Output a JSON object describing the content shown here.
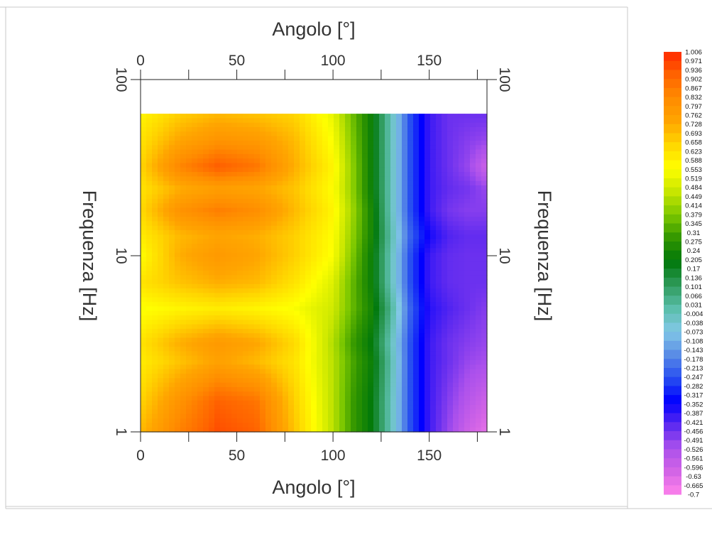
{
  "chart_data": {
    "type": "heatmap",
    "title": "",
    "xlabel": "Angolo [°]",
    "ylabel": "Frequenza [Hz]",
    "x_axis": {
      "lim": [
        0,
        180
      ],
      "ticks": [
        0,
        50,
        100,
        150
      ],
      "tick_labels": [
        "0",
        "50",
        "100",
        "150"
      ],
      "scale": "linear"
    },
    "y_axis": {
      "lim": [
        1,
        100
      ],
      "ticks": [
        1,
        10,
        100
      ],
      "tick_labels": [
        "1",
        "10",
        "100"
      ],
      "scale": "log"
    },
    "data_extent": {
      "x": [
        0,
        180
      ],
      "y": [
        1,
        64
      ]
    },
    "grid": false,
    "colorbar": {
      "labels": [
        "1.006",
        "0.971",
        "0.936",
        "0.902",
        "0.867",
        "0.832",
        "0.797",
        "0.762",
        "0.728",
        "0.693",
        "0.658",
        "0.623",
        "0.588",
        "0.553",
        "0.519",
        "0.484",
        "0.449",
        "0.414",
        "0.379",
        "0.345",
        "0.31",
        "0.275",
        "0.24",
        "0.205",
        "0.17",
        "0.136",
        "0.101",
        "0.066",
        "0.031",
        "-0.004",
        "-0.038",
        "-0.073",
        "-0.108",
        "-0.143",
        "-0.178",
        "-0.213",
        "-0.247",
        "-0.282",
        "-0.317",
        "-0.352",
        "-0.387",
        "-0.421",
        "-0.456",
        "-0.491",
        "-0.526",
        "-0.561",
        "-0.596",
        "-0.63",
        "-0.665",
        "-0.7"
      ],
      "max": 1.006,
      "min": -0.7,
      "colors": [
        "#ff2800",
        "#ff6400",
        "#ff8c00",
        "#ffa500",
        "#ffd700",
        "#ffff00",
        "#c8e600",
        "#7dc800",
        "#329600",
        "#00780a",
        "#2e9a5a",
        "#5abeaa",
        "#82c8e6",
        "#5a8ce6",
        "#2850f0",
        "#0000ff",
        "#5a28f0",
        "#aa50ec",
        "#d264e6",
        "#ff82eb"
      ]
    },
    "angle_deg": [
      0,
      20,
      40,
      60,
      80,
      100,
      110,
      120,
      130,
      140,
      150,
      160,
      170,
      180
    ],
    "frequency_hz": [
      1,
      1.5,
      2.5,
      3.2,
      5,
      7,
      10,
      13,
      18,
      24,
      32,
      45,
      64
    ],
    "values": [
      [
        0.7,
        0.85,
        0.95,
        0.92,
        0.68,
        0.45,
        0.3,
        0.2,
        0.0,
        -0.25,
        -0.4,
        -0.5,
        -0.6,
        -0.65
      ],
      [
        0.65,
        0.8,
        0.92,
        0.88,
        0.66,
        0.45,
        0.3,
        0.2,
        0.0,
        -0.25,
        -0.4,
        -0.48,
        -0.55,
        -0.6
      ],
      [
        0.6,
        0.68,
        0.75,
        0.7,
        0.62,
        0.45,
        0.32,
        0.22,
        0.02,
        -0.25,
        -0.4,
        -0.45,
        -0.5,
        -0.52
      ],
      [
        0.62,
        0.72,
        0.78,
        0.74,
        0.64,
        0.44,
        0.3,
        0.2,
        0.0,
        -0.25,
        -0.4,
        -0.45,
        -0.48,
        -0.5
      ],
      [
        0.55,
        0.58,
        0.6,
        0.58,
        0.55,
        0.48,
        0.35,
        0.24,
        0.05,
        -0.22,
        -0.38,
        -0.42,
        -0.45,
        -0.48
      ],
      [
        0.62,
        0.68,
        0.72,
        0.7,
        0.62,
        0.5,
        0.35,
        0.22,
        0.0,
        -0.25,
        -0.4,
        -0.44,
        -0.45,
        -0.45
      ],
      [
        0.56,
        0.72,
        0.78,
        0.74,
        0.66,
        0.55,
        0.38,
        0.22,
        0.0,
        -0.25,
        -0.4,
        -0.44,
        -0.45,
        -0.45
      ],
      [
        0.6,
        0.7,
        0.74,
        0.72,
        0.66,
        0.56,
        0.4,
        0.24,
        0.02,
        -0.22,
        -0.36,
        -0.42,
        -0.44,
        -0.44
      ],
      [
        0.64,
        0.8,
        0.86,
        0.82,
        0.7,
        0.58,
        0.42,
        0.24,
        0.0,
        -0.25,
        -0.4,
        -0.46,
        -0.48,
        -0.48
      ],
      [
        0.62,
        0.72,
        0.76,
        0.74,
        0.68,
        0.56,
        0.4,
        0.22,
        0.0,
        -0.25,
        -0.4,
        -0.44,
        -0.46,
        -0.5
      ],
      [
        0.65,
        0.84,
        0.93,
        0.88,
        0.72,
        0.58,
        0.4,
        0.22,
        0.0,
        -0.25,
        -0.4,
        -0.45,
        -0.5,
        -0.6
      ],
      [
        0.62,
        0.74,
        0.8,
        0.78,
        0.7,
        0.55,
        0.38,
        0.22,
        0.0,
        -0.25,
        -0.4,
        -0.45,
        -0.48,
        -0.5
      ],
      [
        0.58,
        0.66,
        0.7,
        0.68,
        0.65,
        0.52,
        0.36,
        0.22,
        0.0,
        -0.25,
        -0.4,
        -0.45,
        -0.45,
        -0.45
      ]
    ]
  }
}
